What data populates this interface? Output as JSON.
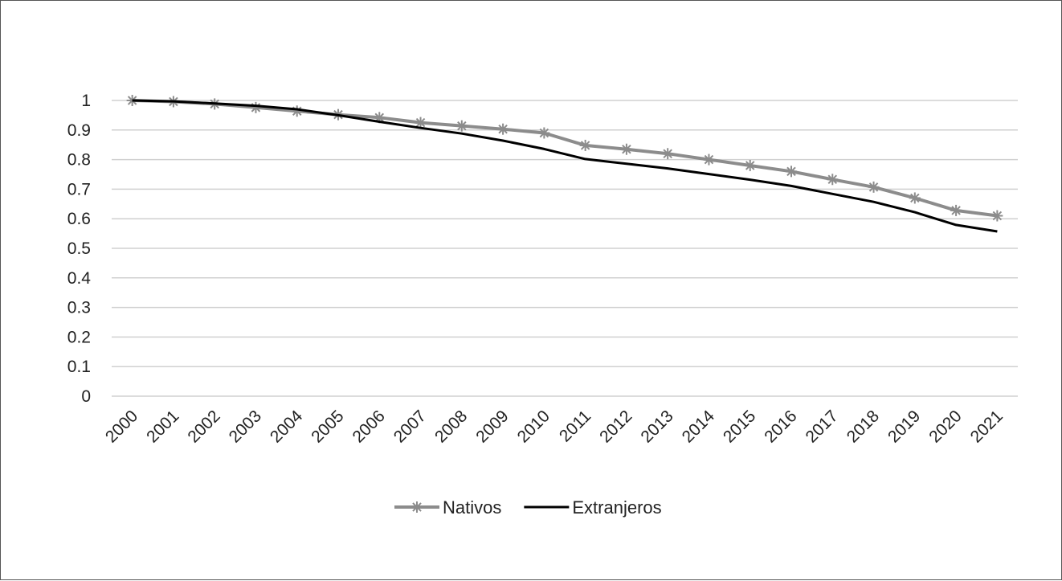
{
  "chart_data": {
    "type": "line",
    "title": "",
    "xlabel": "",
    "ylabel": "",
    "ylim": [
      0,
      1
    ],
    "yticks": [
      "0",
      "0.1",
      "0.2",
      "0.3",
      "0.4",
      "0.5",
      "0.6",
      "0.7",
      "0.8",
      "0.9",
      "1"
    ],
    "categories": [
      "2000",
      "2001",
      "2002",
      "2003",
      "2004",
      "2005",
      "2006",
      "2007",
      "2008",
      "2009",
      "2010",
      "2011",
      "2012",
      "2013",
      "2014",
      "2015",
      "2016",
      "2017",
      "2018",
      "2019",
      "2020",
      "2021"
    ],
    "grid": true,
    "legend_position": "bottom",
    "series": [
      {
        "name": "Nativos",
        "color": "#8c8c8c",
        "marker": "asterisk",
        "values": [
          1.0,
          0.996,
          0.988,
          0.976,
          0.964,
          0.952,
          0.942,
          0.925,
          0.914,
          0.903,
          0.89,
          0.848,
          0.835,
          0.82,
          0.8,
          0.78,
          0.76,
          0.733,
          0.707,
          0.67,
          0.628,
          0.61
        ]
      },
      {
        "name": "Extranjeros",
        "color": "#000000",
        "marker": "none",
        "values": [
          1.0,
          0.997,
          0.99,
          0.982,
          0.97,
          0.95,
          0.928,
          0.907,
          0.888,
          0.864,
          0.836,
          0.802,
          0.786,
          0.77,
          0.751,
          0.732,
          0.711,
          0.684,
          0.657,
          0.622,
          0.579,
          0.557
        ]
      }
    ]
  }
}
